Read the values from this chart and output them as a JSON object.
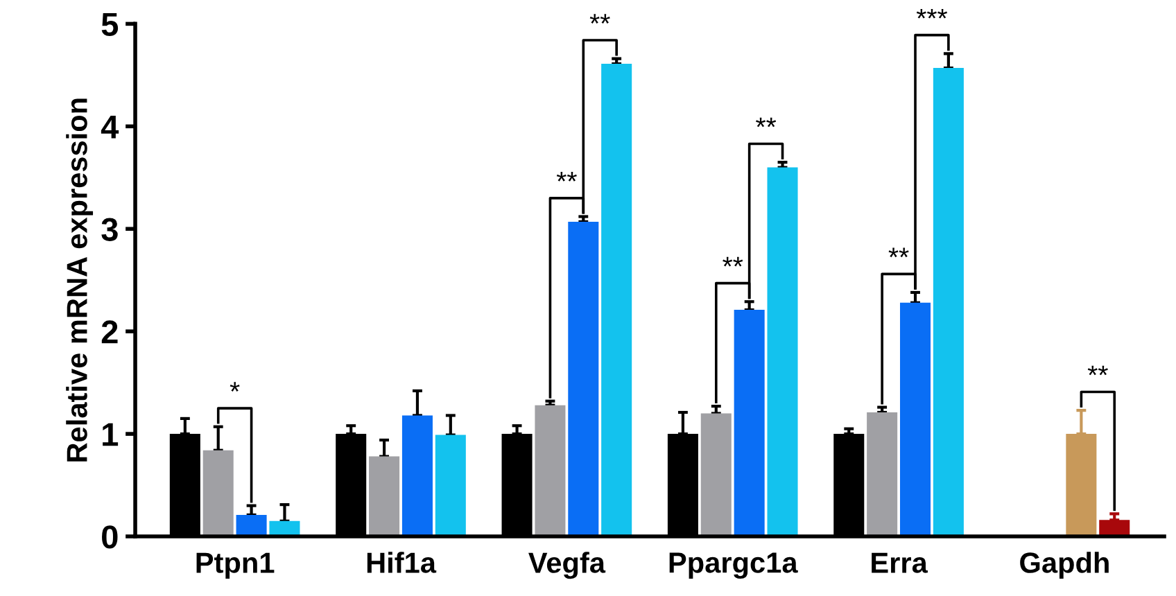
{
  "chart_data": {
    "type": "bar",
    "ylabel": "Relative mRNA expression",
    "categories": [
      "Ptpn1",
      "Hif1a",
      "Vegfa",
      "Ppargc1a",
      "Erra",
      "Gapdh"
    ],
    "series": [
      {
        "color": "#000000",
        "values": [
          1.0,
          1.0,
          1.0,
          1.0,
          1.0,
          null
        ],
        "errors": [
          [
            1.0,
            1.15
          ],
          [
            1.0,
            1.08
          ],
          [
            1.0,
            1.08
          ],
          [
            1.0,
            1.21
          ],
          [
            1.0,
            1.05
          ],
          null
        ]
      },
      {
        "color": "#a0a0a4",
        "values": [
          0.84,
          0.78,
          1.28,
          1.2,
          1.21,
          null
        ],
        "errors": [
          [
            0.84,
            1.07
          ],
          [
            0.78,
            0.94
          ],
          [
            1.28,
            1.32
          ],
          [
            1.2,
            1.27
          ],
          [
            1.21,
            1.26
          ],
          null
        ]
      },
      {
        "color": "#0a6ef5",
        "colors": [
          "#0a6ef5",
          "#0a6ef5",
          "#0a6ef5",
          "#0a6ef5",
          "#0a6ef5",
          "#c8995a"
        ],
        "values": [
          0.21,
          1.18,
          3.07,
          2.21,
          2.28,
          1.0
        ],
        "errors": [
          [
            0.21,
            0.3
          ],
          [
            1.18,
            1.42
          ],
          [
            3.07,
            3.12
          ],
          [
            2.21,
            2.29
          ],
          [
            2.28,
            2.38
          ],
          [
            1.0,
            1.23
          ]
        ]
      },
      {
        "color": "#13c2ee",
        "colors": [
          "#13c2ee",
          "#13c2ee",
          "#13c2ee",
          "#13c2ee",
          "#13c2ee",
          "#a8080b"
        ],
        "values": [
          0.15,
          0.99,
          4.61,
          3.6,
          4.57,
          0.16
        ],
        "errors": [
          [
            0.15,
            0.31
          ],
          [
            0.99,
            1.18
          ],
          [
            4.61,
            4.66
          ],
          [
            3.6,
            3.65
          ],
          [
            4.57,
            4.71
          ],
          [
            0.16,
            0.22
          ]
        ]
      }
    ],
    "ylim": [
      0,
      5
    ],
    "yticks": [
      0,
      1,
      2,
      3,
      4,
      5
    ],
    "grid": false,
    "legend": false,
    "annotations": [
      {
        "text": "*",
        "y": 0.84
      },
      {
        "text": "**",
        "y": 3.07
      },
      {
        "text": "**",
        "y": 4.61
      },
      {
        "text": "**",
        "y": 2.21
      },
      {
        "text": "**",
        "y": 3.6
      },
      {
        "text": "**",
        "y": 2.28
      },
      {
        "text": "***",
        "y": 4.57
      },
      {
        "text": "**",
        "y": 1.0
      }
    ]
  }
}
